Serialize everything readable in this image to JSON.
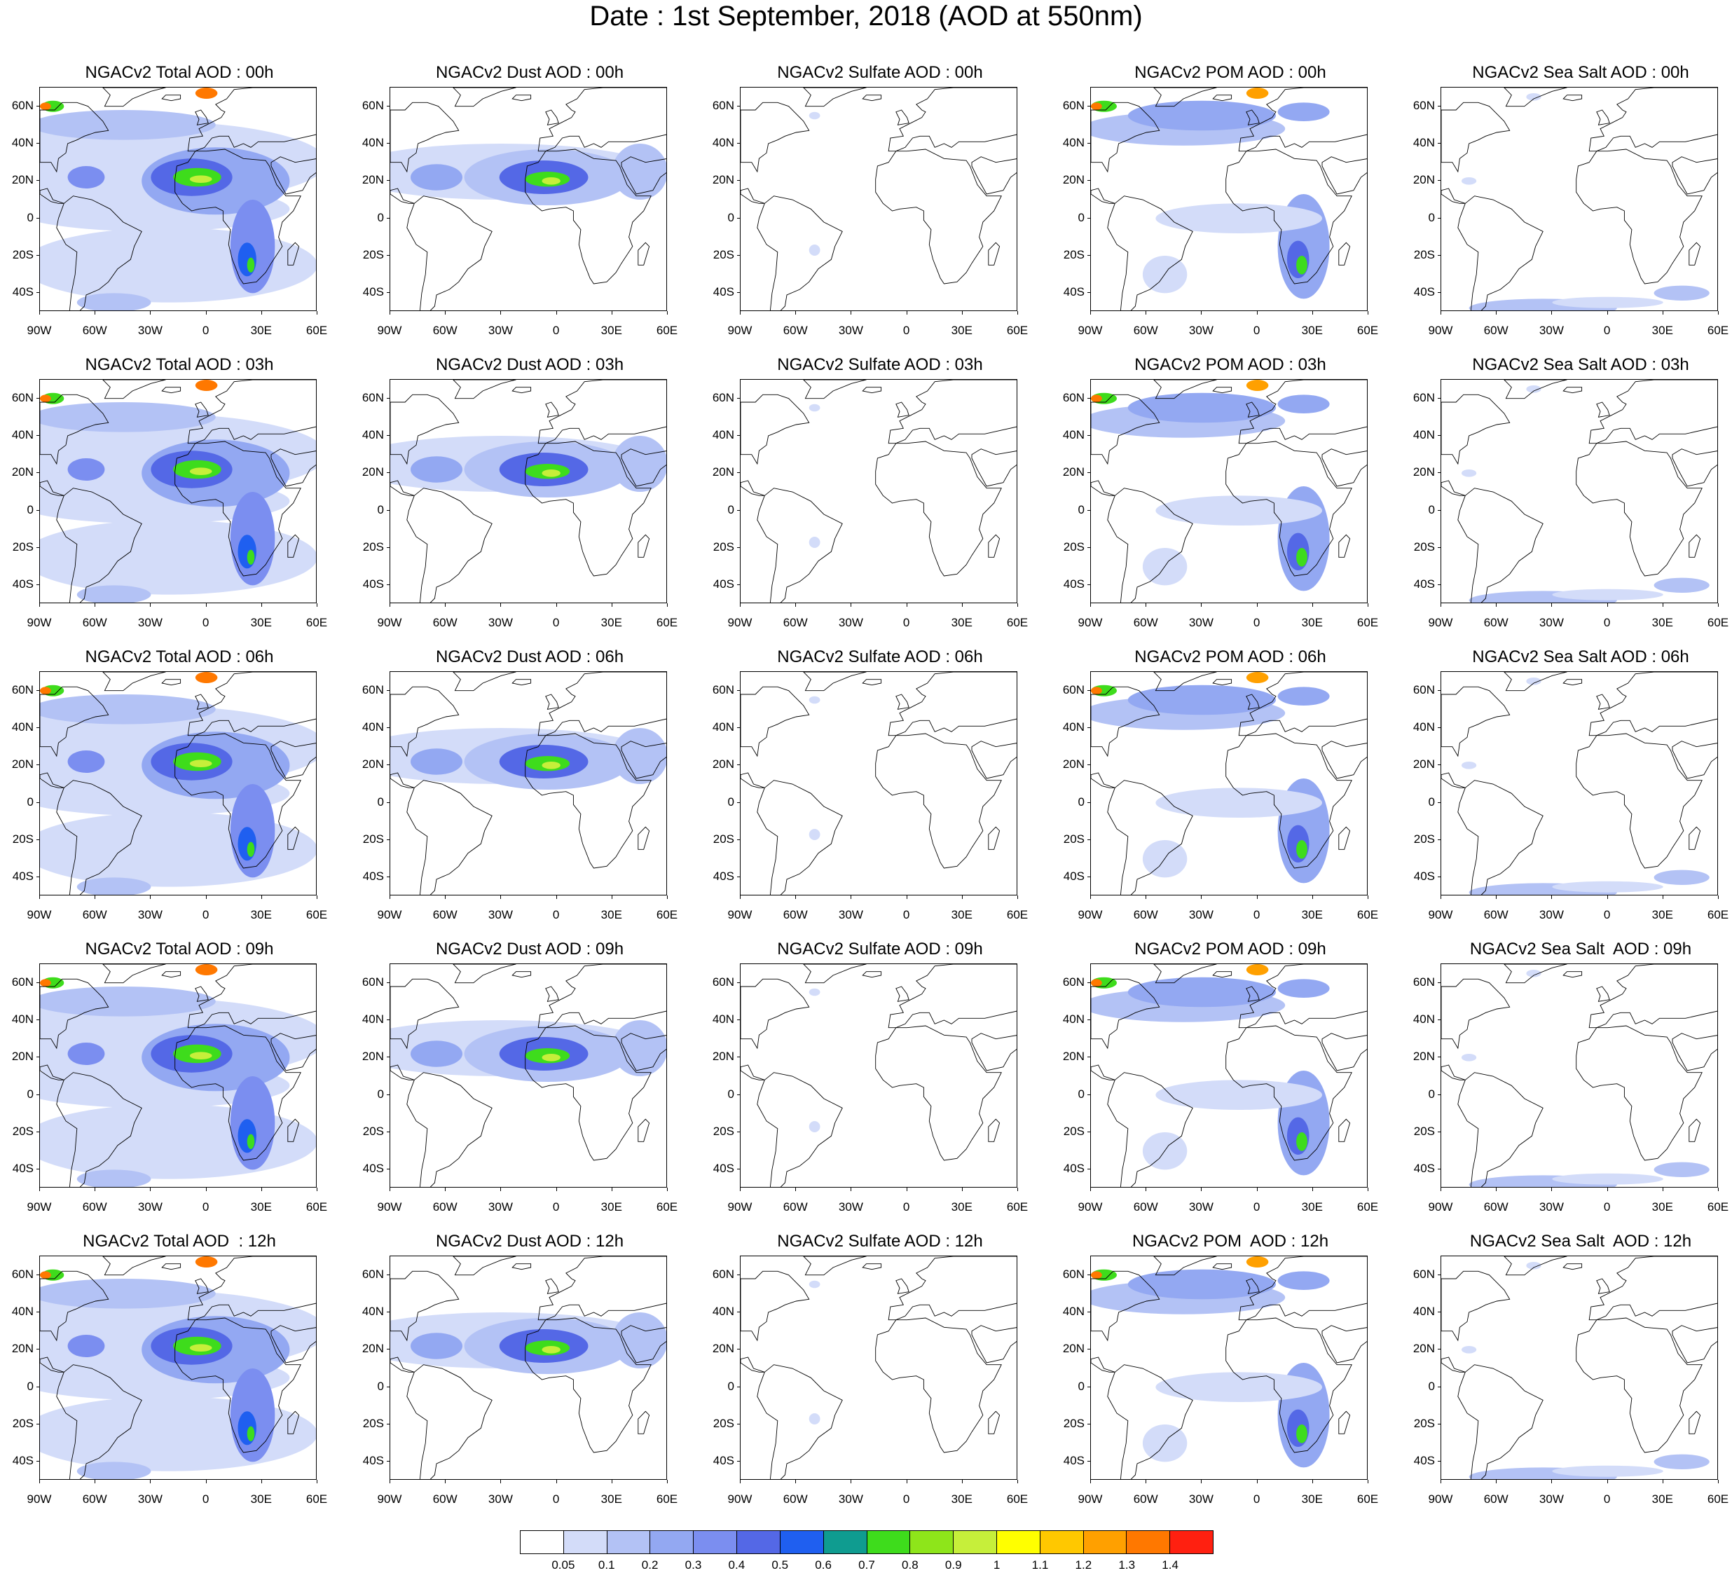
{
  "title": "Date : 1st September, 2018 (AOD at 550nm)",
  "lat_labels": [
    "60N",
    "40N",
    "20N",
    "0",
    "20S",
    "40S"
  ],
  "lon_labels": [
    "90W",
    "60W",
    "30W",
    "0",
    "30E",
    "60E"
  ],
  "columns": [
    {
      "species": "total",
      "titles": [
        "NGACv2 Total AOD : 00h",
        "NGACv2 Total AOD : 03h",
        "NGACv2 Total AOD : 06h",
        "NGACv2 Total AOD : 09h",
        "NGACv2 Total AOD  : 12h"
      ]
    },
    {
      "species": "dust",
      "titles": [
        "NGACv2 Dust AOD : 00h",
        "NGACv2 Dust AOD : 03h",
        "NGACv2 Dust AOD : 06h",
        "NGACv2 Dust AOD : 09h",
        "NGACv2 Dust AOD : 12h"
      ]
    },
    {
      "species": "sulfate",
      "titles": [
        "NGACv2 Sulfate AOD : 00h",
        "NGACv2 Sulfate AOD : 03h",
        "NGACv2 Sulfate AOD : 06h",
        "NGACv2 Sulfate AOD : 09h",
        "NGACv2 Sulfate AOD : 12h"
      ]
    },
    {
      "species": "pom",
      "titles": [
        "NGACv2 POM AOD : 00h",
        "NGACv2 POM AOD : 03h",
        "NGACv2 POM AOD : 06h",
        "NGACv2 POM AOD : 09h",
        "NGACv2 POM  AOD : 12h"
      ]
    },
    {
      "species": "seasalt",
      "titles": [
        "NGACv2 Sea Salt AOD : 00h",
        "NGACv2 Sea Salt AOD : 03h",
        "NGACv2 Sea Salt AOD : 06h",
        "NGACv2 Sea Salt  AOD : 09h",
        "NGACv2 Sea Salt  AOD : 12h"
      ]
    }
  ],
  "colorbar": {
    "labels": [
      "0.05",
      "0.1",
      "0.2",
      "0.3",
      "0.4",
      "0.5",
      "0.6",
      "0.7",
      "0.8",
      "0.9",
      "1",
      "1.1",
      "1.2",
      "1.3",
      "1.4"
    ],
    "colors": [
      "#ffffff",
      "#d3dcf9",
      "#b3c2f5",
      "#93a8f2",
      "#7b8ef0",
      "#5468e6",
      "#1f5ff0",
      "#0f9c90",
      "#3edc1c",
      "#8ee51a",
      "#c6ef3a",
      "#ffff00",
      "#ffc800",
      "#ffa000",
      "#ff7800",
      "#ff2010"
    ]
  }
}
